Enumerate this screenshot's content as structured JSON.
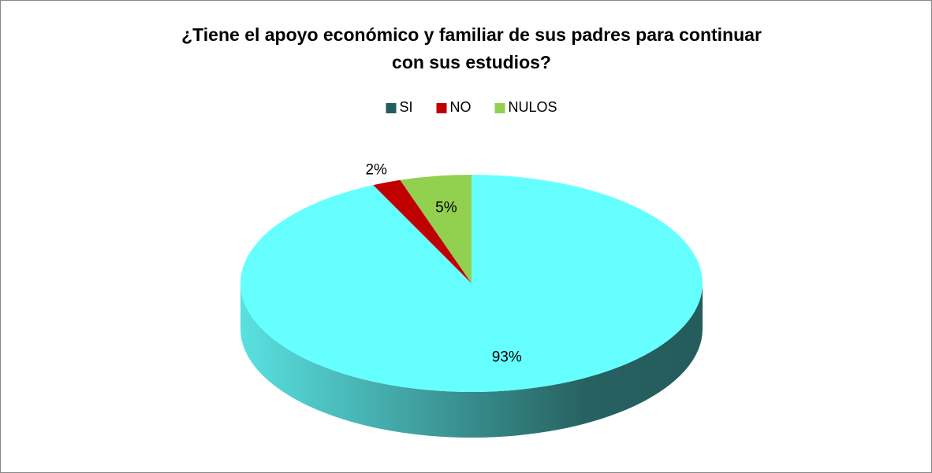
{
  "chart_data": {
    "type": "pie3d",
    "title": "¿Tiene el apoyo económico y familiar de sus padres para continuar con sus estudios?",
    "categories": [
      "SI",
      "NO",
      "NULOS"
    ],
    "values": [
      93,
      2,
      5
    ],
    "value_labels": [
      "93%",
      "2%",
      "5%"
    ],
    "colors": [
      "#66FFFF",
      "#C00000",
      "#92D050"
    ],
    "legend_colors": [
      "#215E5E",
      "#C00000",
      "#92D050"
    ],
    "legend": "top"
  }
}
